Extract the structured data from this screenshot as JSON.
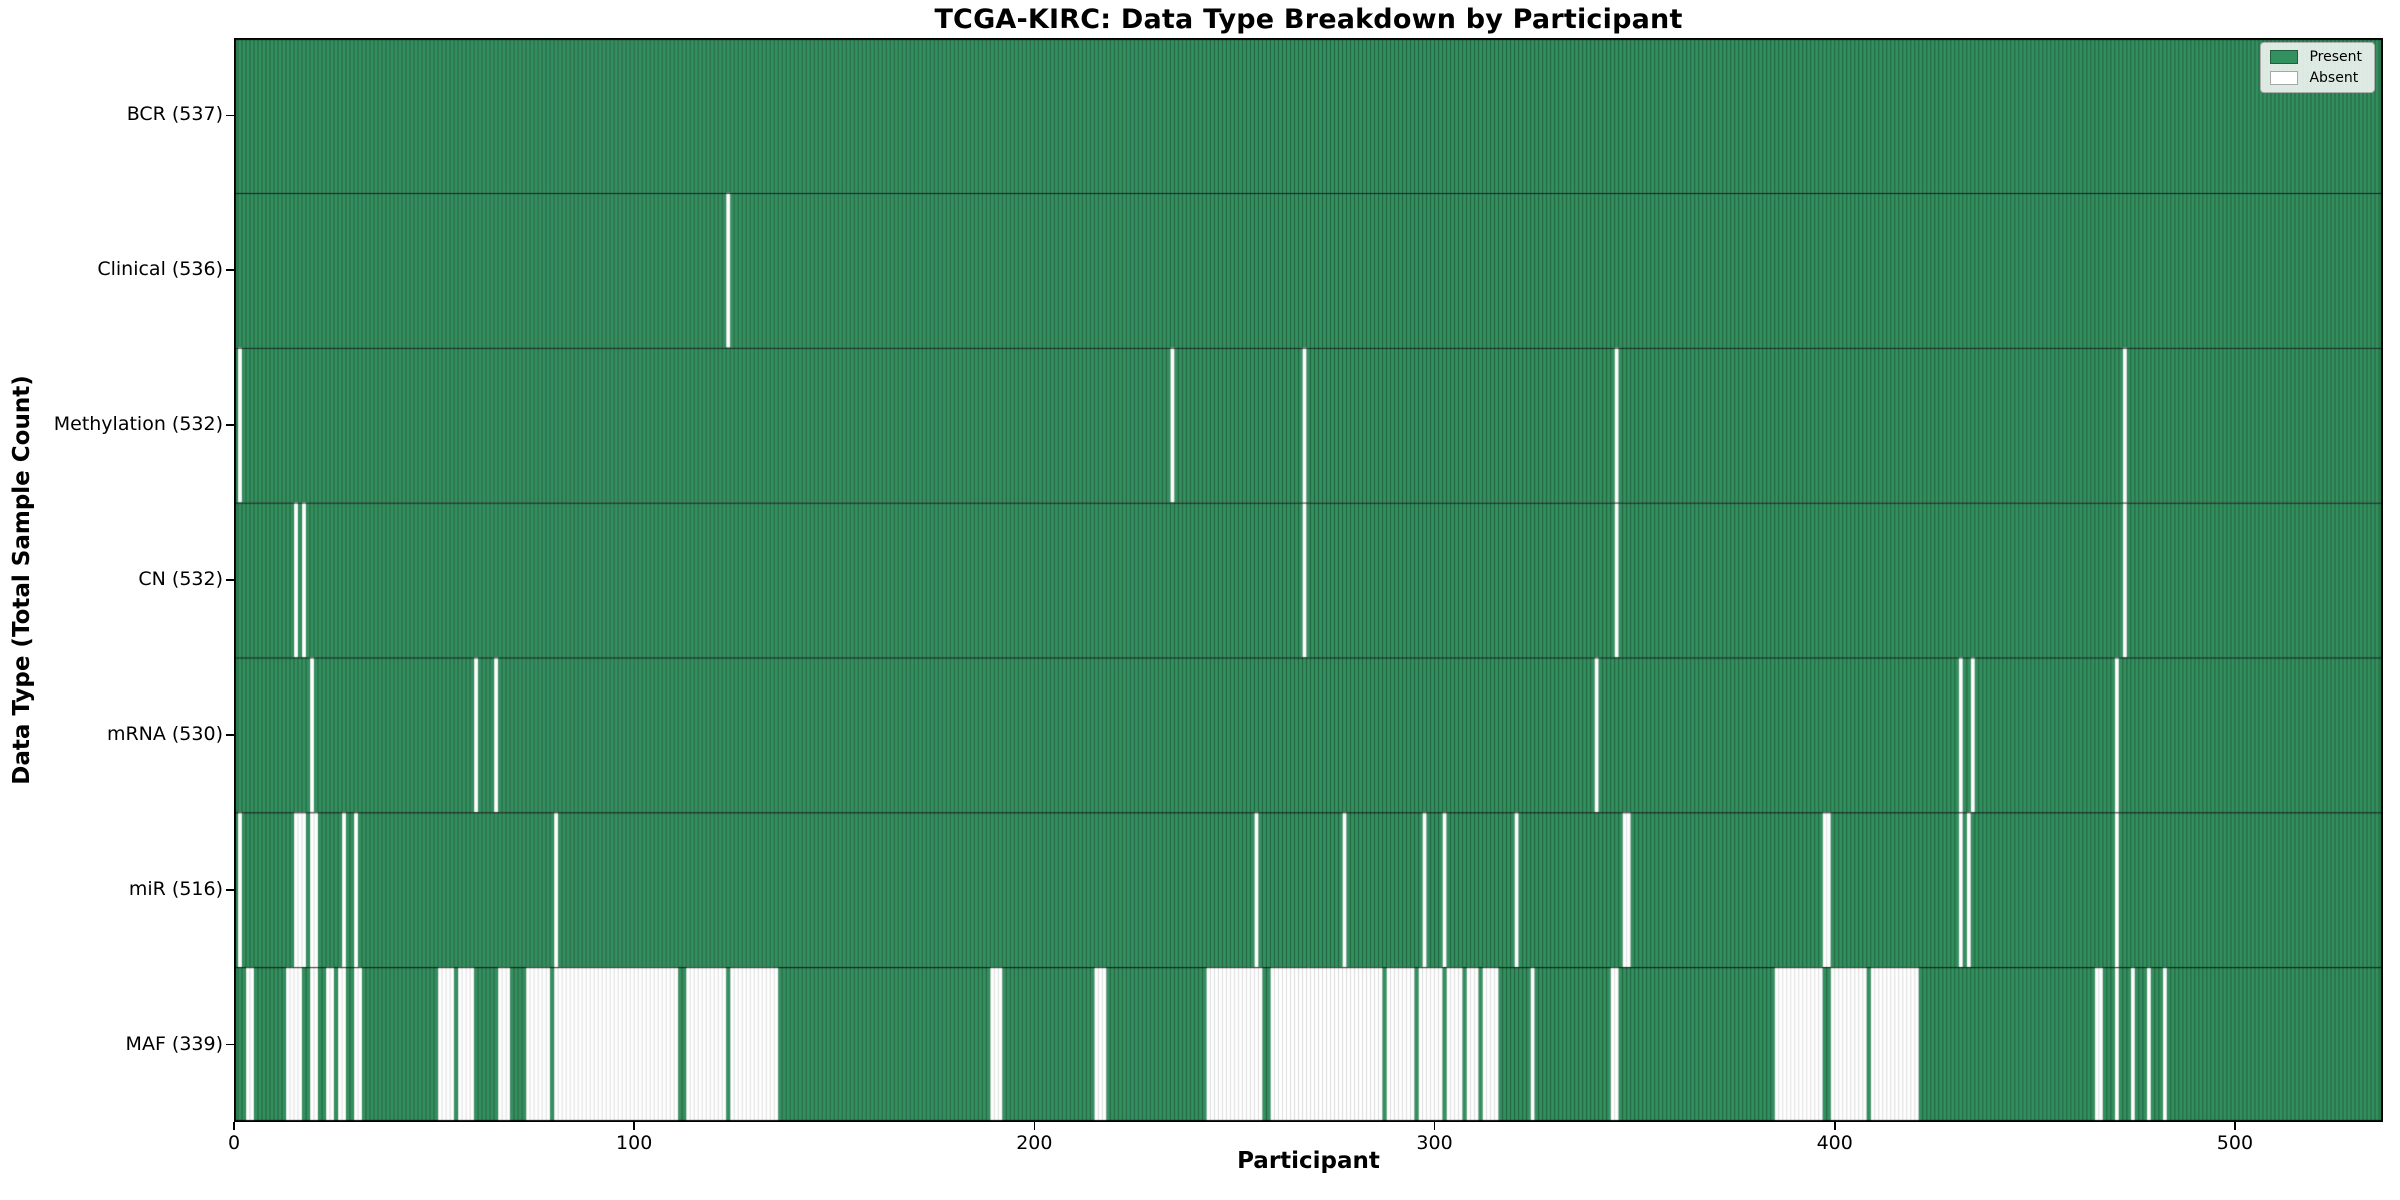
{
  "title": "TCGA-KIRC: Data Type Breakdown by Participant",
  "xlabel": "Participant",
  "ylabel": "Data Type (Total Sample Count)",
  "legend": {
    "present_label": "Present",
    "absent_label": "Absent"
  },
  "colors": {
    "present": "#33915f",
    "absent": "#ffffff",
    "present_edge": "rgba(0,0,0,0.45)",
    "absent_edge": "rgba(0,0,0,0.18)",
    "row_separator": "rgba(0,0,0,0.85)",
    "plot_border": "#000000",
    "legend_bg": "#fcfcfa"
  },
  "chart_data": {
    "type": "heatmap",
    "title": "TCGA-KIRC: Data Type Breakdown by Participant",
    "xlabel": "Participant",
    "ylabel": "Data Type (Total Sample Count)",
    "legend": [
      "Present",
      "Absent"
    ],
    "legend_position": "upper right",
    "grid": false,
    "n_participants": 537,
    "xlim": [
      0,
      537
    ],
    "x_ticks": [
      0,
      100,
      200,
      300,
      400,
      500
    ],
    "rows": [
      {
        "name": "BCR",
        "label": "BCR (537)",
        "present_count": 537,
        "absent_ranges": []
      },
      {
        "name": "Clinical",
        "label": "Clinical (536)",
        "present_count": 536,
        "absent_ranges": [
          [
            123,
            123
          ]
        ]
      },
      {
        "name": "Methylation",
        "label": "Methylation (532)",
        "present_count": 532,
        "absent_ranges": [
          [
            1,
            1
          ],
          [
            234,
            234
          ],
          [
            267,
            267
          ],
          [
            345,
            345
          ],
          [
            472,
            472
          ]
        ]
      },
      {
        "name": "CN",
        "label": "CN (532)",
        "present_count": 532,
        "absent_ranges": [
          [
            15,
            15
          ],
          [
            17,
            17
          ],
          [
            267,
            267
          ],
          [
            345,
            345
          ],
          [
            472,
            472
          ]
        ]
      },
      {
        "name": "mRNA",
        "label": "mRNA (530)",
        "present_count": 530,
        "absent_ranges": [
          [
            19,
            19
          ],
          [
            60,
            60
          ],
          [
            65,
            65
          ],
          [
            340,
            340
          ],
          [
            431,
            431
          ],
          [
            434,
            434
          ],
          [
            470,
            470
          ]
        ]
      },
      {
        "name": "miR",
        "label": "miR (516)",
        "present_count": 516,
        "absent_ranges": [
          [
            1,
            1
          ],
          [
            15,
            17
          ],
          [
            19,
            20
          ],
          [
            27,
            27
          ],
          [
            30,
            30
          ],
          [
            80,
            80
          ],
          [
            255,
            255
          ],
          [
            277,
            277
          ],
          [
            297,
            297
          ],
          [
            302,
            302
          ],
          [
            320,
            320
          ],
          [
            347,
            348
          ],
          [
            397,
            398
          ],
          [
            431,
            431
          ],
          [
            433,
            433
          ],
          [
            470,
            470
          ]
        ]
      },
      {
        "name": "MAF",
        "label": "MAF (339)",
        "present_count": 339,
        "absent_ranges": [
          [
            3,
            4
          ],
          [
            13,
            16
          ],
          [
            19,
            20
          ],
          [
            23,
            24
          ],
          [
            26,
            27
          ],
          [
            30,
            31
          ],
          [
            51,
            54
          ],
          [
            56,
            59
          ],
          [
            66,
            68
          ],
          [
            73,
            78
          ],
          [
            80,
            110
          ],
          [
            113,
            122
          ],
          [
            124,
            135
          ],
          [
            189,
            191
          ],
          [
            215,
            217
          ],
          [
            243,
            256
          ],
          [
            259,
            286
          ],
          [
            288,
            294
          ],
          [
            296,
            301
          ],
          [
            303,
            306
          ],
          [
            308,
            310
          ],
          [
            312,
            315
          ],
          [
            324,
            324
          ],
          [
            344,
            345
          ],
          [
            385,
            396
          ],
          [
            399,
            407
          ],
          [
            409,
            420
          ],
          [
            465,
            466
          ],
          [
            470,
            470
          ],
          [
            474,
            474
          ],
          [
            478,
            478
          ],
          [
            482,
            482
          ]
        ]
      }
    ]
  }
}
